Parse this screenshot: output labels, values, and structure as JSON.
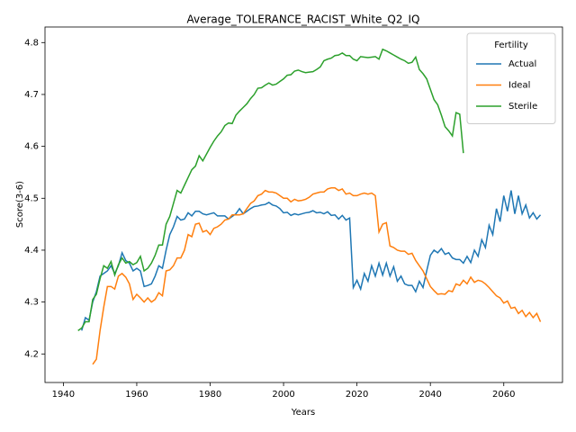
{
  "chart_data": {
    "type": "line",
    "title": "Average_TOLERANCE_RACIST_White_Q2_IQ",
    "xlabel": "Years",
    "ylabel": "Score(3-6)",
    "legend_title": "Fertility",
    "legend_loc": "upper right",
    "xlim": [
      1935,
      2076
    ],
    "ylim": [
      4.145,
      4.83
    ],
    "xticks": [
      1940,
      1960,
      1980,
      2000,
      2020,
      2040,
      2060
    ],
    "yticks": [
      4.2,
      4.3,
      4.4,
      4.5,
      4.6,
      4.7,
      4.8
    ],
    "x": [
      1944,
      1945,
      1946,
      1947,
      1948,
      1949,
      1950,
      1951,
      1952,
      1953,
      1954,
      1955,
      1956,
      1957,
      1958,
      1959,
      1960,
      1961,
      1962,
      1963,
      1964,
      1965,
      1966,
      1967,
      1968,
      1969,
      1970,
      1971,
      1972,
      1973,
      1974,
      1975,
      1976,
      1977,
      1978,
      1979,
      1980,
      1981,
      1982,
      1983,
      1984,
      1985,
      1986,
      1987,
      1988,
      1989,
      1990,
      1991,
      1992,
      1993,
      1994,
      1995,
      1996,
      1997,
      1998,
      1999,
      2000,
      2001,
      2002,
      2003,
      2004,
      2005,
      2006,
      2007,
      2008,
      2009,
      2010,
      2011,
      2012,
      2013,
      2014,
      2015,
      2016,
      2017,
      2018,
      2019,
      2020,
      2021,
      2022,
      2023,
      2024,
      2025,
      2026,
      2027,
      2028,
      2029,
      2030,
      2031,
      2032,
      2033,
      2034,
      2035,
      2036,
      2037,
      2038,
      2039,
      2040,
      2041,
      2042,
      2043,
      2044,
      2045,
      2046,
      2047,
      2048,
      2049,
      2050,
      2051,
      2052,
      2053,
      2054,
      2055,
      2056,
      2057,
      2058,
      2059,
      2060,
      2061,
      2062,
      2063,
      2064,
      2065,
      2066,
      2067,
      2068,
      2069,
      2070
    ],
    "series": [
      {
        "name": "Actual",
        "color": "#1f77b4",
        "values": [
          null,
          4.245,
          4.27,
          4.265,
          4.3,
          4.32,
          4.35,
          4.355,
          4.36,
          4.37,
          4.355,
          4.37,
          4.395,
          4.38,
          4.375,
          4.36,
          4.365,
          4.36,
          4.33,
          4.332,
          4.335,
          4.35,
          4.37,
          4.365,
          4.4,
          4.43,
          4.445,
          4.465,
          4.458,
          4.46,
          4.472,
          4.466,
          4.475,
          4.475,
          4.47,
          4.468,
          4.47,
          4.472,
          4.466,
          4.466,
          4.466,
          4.46,
          4.465,
          4.47,
          4.48,
          4.47,
          4.475,
          4.48,
          4.484,
          4.485,
          4.487,
          4.488,
          4.492,
          4.487,
          4.485,
          4.48,
          4.472,
          4.473,
          4.467,
          4.47,
          4.468,
          4.47,
          4.472,
          4.473,
          4.476,
          4.472,
          4.473,
          4.47,
          4.474,
          4.467,
          4.468,
          4.46,
          4.467,
          4.458,
          4.462,
          4.328,
          4.342,
          4.325,
          4.355,
          4.34,
          4.37,
          4.35,
          4.375,
          4.352,
          4.375,
          4.35,
          4.368,
          4.34,
          4.35,
          4.335,
          4.332,
          4.332,
          4.32,
          4.34,
          4.328,
          4.36,
          4.39,
          4.4,
          4.395,
          4.403,
          4.392,
          4.395,
          4.385,
          4.382,
          4.382,
          4.375,
          4.388,
          4.376,
          4.4,
          4.388,
          4.42,
          4.405,
          4.448,
          4.43,
          4.48,
          4.455,
          4.505,
          4.475,
          4.515,
          4.47,
          4.505,
          4.47,
          4.487,
          4.462,
          4.472,
          4.46,
          4.468
        ]
      },
      {
        "name": "Ideal",
        "color": "#ff7f0e",
        "values": [
          null,
          null,
          null,
          null,
          4.18,
          4.19,
          4.245,
          4.29,
          4.33,
          4.33,
          4.325,
          4.35,
          4.355,
          4.348,
          4.335,
          4.305,
          4.315,
          4.308,
          4.3,
          4.308,
          4.3,
          4.305,
          4.318,
          4.312,
          4.36,
          4.362,
          4.37,
          4.385,
          4.385,
          4.4,
          4.43,
          4.426,
          4.45,
          4.452,
          4.435,
          4.438,
          4.43,
          4.442,
          4.445,
          4.45,
          4.458,
          4.46,
          4.468,
          4.468,
          4.468,
          4.47,
          4.48,
          4.49,
          4.495,
          4.505,
          4.508,
          4.515,
          4.512,
          4.512,
          4.51,
          4.505,
          4.5,
          4.5,
          4.493,
          4.498,
          4.495,
          4.496,
          4.498,
          4.502,
          4.508,
          4.51,
          4.512,
          4.512,
          4.518,
          4.52,
          4.52,
          4.515,
          4.518,
          4.508,
          4.51,
          4.505,
          4.505,
          4.508,
          4.51,
          4.508,
          4.51,
          4.505,
          4.435,
          4.45,
          4.453,
          4.408,
          4.405,
          4.4,
          4.398,
          4.398,
          4.392,
          4.394,
          4.38,
          4.37,
          4.36,
          4.345,
          4.33,
          4.322,
          4.315,
          4.316,
          4.315,
          4.322,
          4.32,
          4.335,
          4.332,
          4.342,
          4.335,
          4.348,
          4.338,
          4.342,
          4.34,
          4.335,
          4.328,
          4.32,
          4.312,
          4.308,
          4.298,
          4.302,
          4.288,
          4.29,
          4.278,
          4.284,
          4.272,
          4.28,
          4.27,
          4.278,
          4.262
        ]
      },
      {
        "name": "Sterile",
        "color": "#2ca02c",
        "values": [
          4.245,
          4.25,
          4.262,
          4.262,
          4.305,
          4.315,
          4.345,
          4.37,
          4.365,
          4.378,
          4.352,
          4.372,
          4.385,
          4.375,
          4.378,
          4.372,
          4.376,
          4.388,
          4.36,
          4.365,
          4.375,
          4.39,
          4.41,
          4.41,
          4.45,
          4.465,
          4.49,
          4.515,
          4.51,
          4.525,
          4.54,
          4.555,
          4.562,
          4.582,
          4.572,
          4.585,
          4.598,
          4.61,
          4.62,
          4.628,
          4.64,
          4.645,
          4.644,
          4.66,
          4.668,
          4.675,
          4.682,
          4.692,
          4.7,
          4.712,
          4.713,
          4.718,
          4.722,
          4.718,
          4.72,
          4.725,
          4.73,
          4.737,
          4.738,
          4.745,
          4.747,
          4.744,
          4.742,
          4.743,
          4.744,
          4.748,
          4.753,
          4.765,
          4.768,
          4.77,
          4.775,
          4.776,
          4.78,
          4.775,
          4.775,
          4.768,
          4.765,
          4.773,
          4.772,
          4.771,
          4.772,
          4.773,
          4.768,
          4.787,
          4.784,
          4.78,
          4.776,
          4.772,
          4.768,
          4.765,
          4.76,
          4.762,
          4.772,
          4.748,
          4.74,
          4.73,
          4.71,
          4.69,
          4.68,
          4.66,
          4.638,
          4.63,
          4.62,
          4.665,
          4.662,
          4.587,
          null,
          null,
          null,
          null,
          null,
          null,
          null,
          null,
          null,
          null,
          null,
          null,
          null,
          null,
          null,
          null,
          null,
          null,
          null,
          null,
          null
        ]
      }
    ]
  }
}
